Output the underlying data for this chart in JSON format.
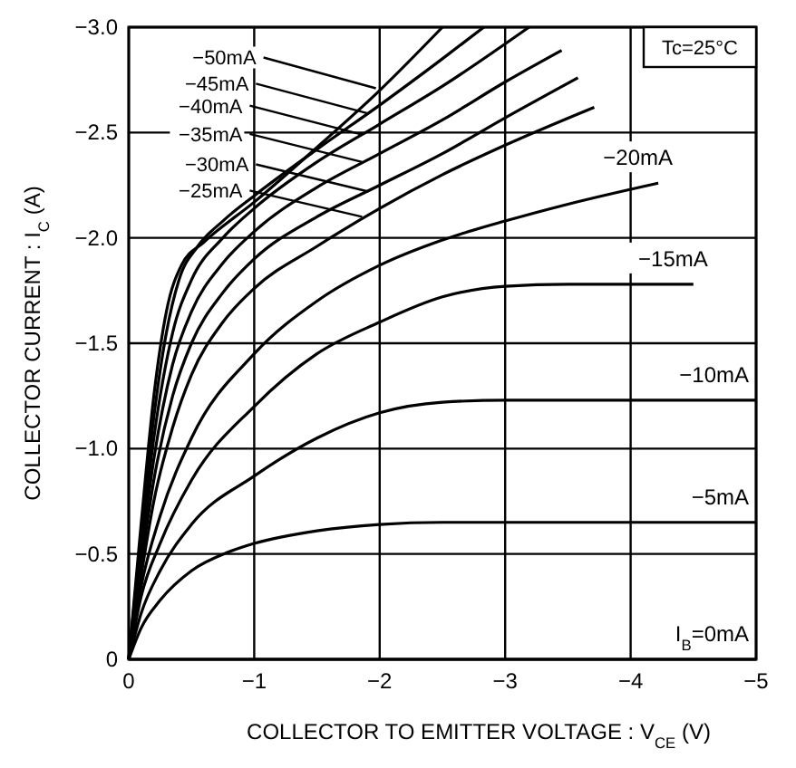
{
  "chart_data": {
    "type": "line",
    "xlabel": "COLLECTOR TO EMITTER VOLTAGE : V$_{CE}$ (V)",
    "ylabel": "COLLECTOR CURRENT : I$_{C}$ (A)",
    "xlim": [
      0,
      -5
    ],
    "ylim": [
      0,
      -3
    ],
    "xticks": [
      0,
      {
        "value": -1,
        "label": "−1"
      },
      {
        "value": -2,
        "label": "−2"
      },
      {
        "value": -3,
        "label": "−3"
      },
      {
        "value": -4,
        "label": "−4"
      },
      {
        "value": -5,
        "label": "−5"
      }
    ],
    "yticks": [
      0,
      {
        "value": -0.5,
        "label": "−0.5"
      },
      {
        "value": -1,
        "label": "−1.0"
      },
      {
        "value": -1.5,
        "label": "−1.5"
      },
      {
        "value": -2,
        "label": "−2.0"
      },
      {
        "value": -2.5,
        "label": "−2.5"
      },
      {
        "value": -3,
        "label": "−3.0"
      }
    ],
    "grid": true,
    "line_style": "solid",
    "series": [
      {
        "name": "I$_{B}$=0mA",
        "color": "#000000",
        "x": [
          0,
          -5
        ],
        "values": [
          0,
          0
        ]
      },
      {
        "name": "−5mA",
        "color": "#000000",
        "x": [
          0,
          -0.1,
          -0.25,
          -0.5,
          -0.8,
          -1,
          -1.5,
          -2,
          -2.5,
          -3,
          -4,
          -5
        ],
        "values": [
          0,
          -0.15,
          -0.28,
          -0.42,
          -0.51,
          -0.55,
          -0.61,
          -0.64,
          -0.65,
          -0.65,
          -0.65,
          -0.65
        ]
      },
      {
        "name": "−10mA",
        "color": "#000000",
        "x": [
          0,
          -0.1,
          -0.25,
          -0.5,
          -1,
          -1.5,
          -2,
          -2.5,
          -3,
          -4,
          -5
        ],
        "values": [
          0,
          -0.22,
          -0.42,
          -0.64,
          -0.87,
          -1.05,
          -1.17,
          -1.22,
          -1.23,
          -1.23,
          -1.23
        ]
      },
      {
        "name": "−15mA",
        "color": "#000000",
        "x": [
          0,
          -0.1,
          -0.25,
          -0.5,
          -1,
          -1.5,
          -2,
          -2.5,
          -3,
          -3.5,
          -4.5
        ],
        "values": [
          0,
          -0.3,
          -0.55,
          -0.85,
          -1.2,
          -1.45,
          -1.6,
          -1.72,
          -1.77,
          -1.78,
          -1.78
        ]
      },
      {
        "name": "−20mA",
        "color": "#000000",
        "x": [
          0,
          -0.1,
          -0.25,
          -0.5,
          -1,
          -1.5,
          -2,
          -2.5,
          -3,
          -3.5,
          -4.22
        ],
        "values": [
          0,
          -0.35,
          -0.68,
          -1.05,
          -1.45,
          -1.7,
          -1.87,
          -1.99,
          -2.08,
          -2.16,
          -2.26
        ]
      },
      {
        "color": "#000000",
        "x": [
          0,
          -0.1,
          -0.2,
          -0.35,
          -0.5,
          -0.75,
          -1,
          -1.5,
          -2,
          -2.5,
          -3,
          -3.71
        ],
        "values": [
          0,
          -0.4,
          -0.75,
          -1.1,
          -1.35,
          -1.6,
          -1.76,
          -1.96,
          -2.14,
          -2.3,
          -2.44,
          -2.62
        ]
      },
      {
        "color": "#000000",
        "x": [
          0,
          -0.1,
          -0.2,
          -0.35,
          -0.5,
          -0.75,
          -1,
          -1.5,
          -2,
          -2.5,
          -3,
          -3.58
        ],
        "values": [
          0,
          -0.45,
          -0.85,
          -1.25,
          -1.5,
          -1.74,
          -1.9,
          -2.1,
          -2.25,
          -2.4,
          -2.57,
          -2.76
        ]
      },
      {
        "color": "#000000",
        "x": [
          0,
          -0.1,
          -0.2,
          -0.35,
          -0.5,
          -0.75,
          -1,
          -1.5,
          -2,
          -2.5,
          -3,
          -3.45
        ],
        "values": [
          0,
          -0.5,
          -0.95,
          -1.4,
          -1.65,
          -1.88,
          -2.03,
          -2.24,
          -2.4,
          -2.56,
          -2.74,
          -2.89
        ]
      },
      {
        "color": "#000000",
        "x": [
          0,
          -0.1,
          -0.2,
          -0.35,
          -0.5,
          -0.75,
          -1,
          -1.5,
          -2,
          -2.5,
          -3.19
        ],
        "values": [
          0,
          -0.55,
          -1.05,
          -1.55,
          -1.8,
          -2.0,
          -2.14,
          -2.36,
          -2.54,
          -2.72,
          -3.0
        ]
      },
      {
        "color": "#000000",
        "x": [
          0,
          -0.1,
          -0.2,
          -0.3,
          -0.4,
          -0.55,
          -0.75,
          -1,
          -1.5,
          -2,
          -2.5,
          -2.83
        ],
        "values": [
          0,
          -0.6,
          -1.15,
          -1.55,
          -1.8,
          -1.96,
          -2.08,
          -2.2,
          -2.42,
          -2.63,
          -2.85,
          -3.0
        ]
      },
      {
        "color": "#000000",
        "x": [
          0,
          -0.1,
          -0.2,
          -0.3,
          -0.42,
          -0.6,
          -1,
          -1.5,
          -2,
          -2.5
        ],
        "values": [
          0,
          -0.65,
          -1.25,
          -1.65,
          -1.87,
          -1.98,
          -2.17,
          -2.43,
          -2.7,
          -3.0
        ]
      }
    ],
    "annotations": [
      "Tc=25°C",
      {
        "text": "−50mA",
        "x": -1.97,
        "y": -2.71
      },
      {
        "text": "−45mA",
        "x": -1.91,
        "y": -2.59
      },
      {
        "text": "−40mA",
        "x": -1.86,
        "y": -2.49
      },
      {
        "text": "−35mA",
        "x": -1.86,
        "y": -2.36
      },
      {
        "text": "−30mA",
        "x": -1.91,
        "y": -2.22
      },
      {
        "text": "−25mA",
        "x": -1.86,
        "y": -2.1
      }
    ]
  }
}
